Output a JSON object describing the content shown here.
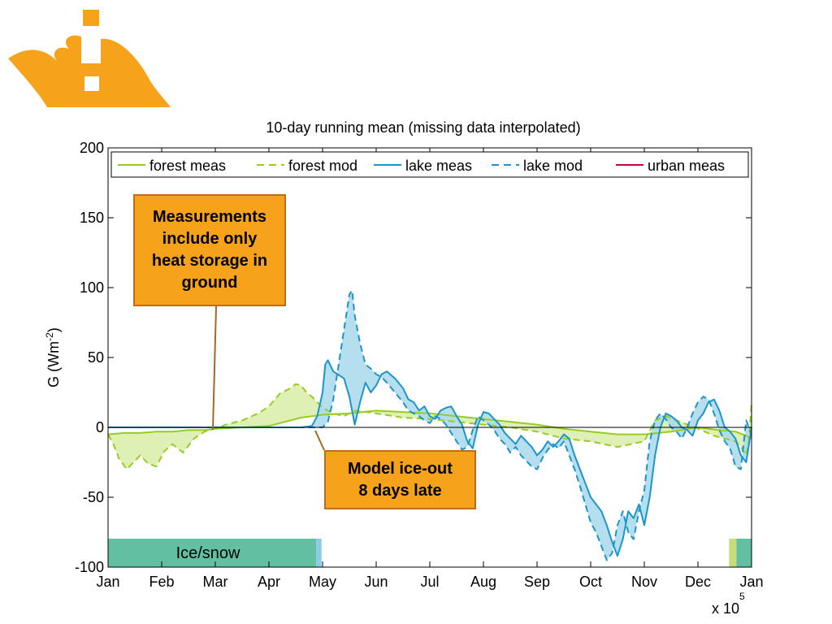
{
  "logo": {
    "name": "university-flame-logo",
    "color": "#F7A21B"
  },
  "callouts": {
    "measurements": "Measurements\ninclude only\nheat storage in\nground",
    "ice_out": "Model ice-out\n8 days late"
  },
  "chart_data": {
    "type": "line",
    "title": "10-day running mean (missing data interpolated)",
    "xlabel": "",
    "ylabel": "G (Wm",
    "ylabel_sup": "-2",
    "ylabel_end": ")",
    "ylim": [
      -100,
      200
    ],
    "yticks": [
      -100,
      -50,
      0,
      50,
      100,
      150,
      200
    ],
    "x_tick_labels": [
      "Jan",
      "Feb",
      "Mar",
      "Apr",
      "May",
      "Jun",
      "Jul",
      "Aug",
      "Sep",
      "Oct",
      "Nov",
      "Dec",
      "Jan"
    ],
    "x_multiplier_label": "x 10",
    "x_multiplier_exp": "5",
    "xlim_months": [
      0,
      12
    ],
    "legend_position": "top",
    "colors": {
      "forest": "#99CC22",
      "forest_fill": "#D9EDA8",
      "lake": "#1C95C9",
      "lake_fill": "#A8D8EC",
      "urban": "#C8003C",
      "ice": "#62BFA2",
      "ice_lake": "#8CCBE8",
      "ice_forest": "#C6DC7A"
    },
    "series": [
      {
        "name": "forest meas",
        "style": "solid",
        "color": "#99CC22",
        "x": [
          0,
          0.3,
          0.6,
          0.9,
          1.2,
          1.5,
          1.8,
          2.0,
          2.5,
          3.0,
          3.3,
          3.6,
          4.0,
          4.5,
          5.0,
          5.5,
          6.0,
          6.5,
          7.0,
          7.5,
          8.0,
          8.5,
          9.0,
          9.5,
          10.0,
          10.5,
          11.0,
          11.4,
          11.7,
          11.9,
          12.0
        ],
        "y": [
          -5,
          -4,
          -4,
          -3,
          -3,
          -2,
          -2,
          -1,
          0,
          1,
          4,
          7,
          9,
          10,
          12,
          11,
          10,
          8,
          6,
          4,
          2,
          -1,
          -3,
          -5,
          -5,
          -3,
          0,
          -2,
          -3,
          -6,
          -8
        ]
      },
      {
        "name": "forest mod",
        "style": "dashed",
        "color": "#99CC22",
        "x": [
          0,
          0.1,
          0.2,
          0.35,
          0.5,
          0.6,
          0.75,
          0.9,
          1.05,
          1.2,
          1.4,
          1.6,
          1.8,
          2.0,
          2.2,
          2.5,
          2.8,
          3.0,
          3.2,
          3.4,
          3.5,
          3.6,
          3.7,
          3.8,
          3.9,
          4.0,
          4.2,
          4.4,
          4.6,
          5.0,
          5.5,
          6.0,
          6.5,
          7.0,
          7.5,
          8.0,
          8.5,
          9.0,
          9.5,
          10.0,
          10.2,
          10.4,
          10.6,
          11.0,
          11.3,
          11.5,
          11.7,
          11.8,
          11.9,
          11.95,
          12.0
        ],
        "y": [
          -5,
          -12,
          -22,
          -30,
          -24,
          -20,
          -26,
          -28,
          -17,
          -12,
          -18,
          -8,
          -3,
          -1,
          2,
          5,
          10,
          15,
          24,
          28,
          31,
          30,
          25,
          22,
          18,
          14,
          10,
          8,
          12,
          10,
          7,
          6,
          4,
          2,
          0,
          -3,
          -8,
          -10,
          -14,
          -10,
          5,
          8,
          5,
          -1,
          -6,
          -8,
          -10,
          -14,
          -20,
          -10,
          17
        ]
      },
      {
        "name": "lake meas",
        "style": "solid",
        "color": "#1C95C9",
        "x": [
          0,
          1,
          2,
          3,
          3.6,
          3.8,
          3.9,
          4.0,
          4.05,
          4.1,
          4.2,
          4.4,
          4.5,
          4.6,
          4.7,
          4.8,
          4.9,
          5.0,
          5.1,
          5.2,
          5.35,
          5.5,
          5.6,
          5.7,
          5.8,
          5.9,
          6.0,
          6.1,
          6.2,
          6.3,
          6.4,
          6.5,
          6.6,
          6.7,
          6.8,
          6.9,
          7.0,
          7.1,
          7.2,
          7.3,
          7.4,
          7.5,
          7.6,
          7.7,
          7.8,
          7.9,
          8.0,
          8.1,
          8.2,
          8.3,
          8.4,
          8.5,
          8.6,
          8.7,
          8.8,
          8.9,
          9.0,
          9.1,
          9.2,
          9.3,
          9.4,
          9.5,
          9.6,
          9.7,
          9.8,
          9.9,
          10.0,
          10.1,
          10.2,
          10.3,
          10.4,
          10.5,
          10.6,
          10.7,
          10.8,
          10.9,
          11.0,
          11.1,
          11.2,
          11.3,
          11.4,
          11.5,
          11.6,
          11.7,
          11.8,
          11.9,
          12.0
        ],
        "y": [
          0,
          0,
          0,
          0,
          0,
          1,
          8,
          25,
          45,
          48,
          40,
          35,
          22,
          2,
          18,
          32,
          25,
          30,
          38,
          40,
          35,
          28,
          20,
          18,
          12,
          15,
          8,
          6,
          12,
          14,
          15,
          8,
          2,
          -10,
          -15,
          2,
          11,
          10,
          6,
          2,
          -4,
          -8,
          -12,
          -6,
          -10,
          -14,
          -20,
          -16,
          -10,
          -14,
          -10,
          -5,
          -8,
          -20,
          -30,
          -40,
          -50,
          -55,
          -60,
          -70,
          -82,
          -92,
          -80,
          -60,
          -65,
          -55,
          -70,
          -50,
          -20,
          0,
          10,
          8,
          5,
          0,
          -2,
          -6,
          5,
          10,
          18,
          20,
          12,
          0,
          -3,
          -8,
          -20,
          -25,
          0
        ]
      },
      {
        "name": "lake mod",
        "style": "dashed",
        "color": "#1C95C9",
        "x": [
          0,
          1,
          2,
          3,
          3.6,
          3.8,
          3.9,
          4.0,
          4.1,
          4.2,
          4.3,
          4.4,
          4.5,
          4.55,
          4.6,
          4.7,
          4.8,
          4.9,
          5.0,
          5.1,
          5.2,
          5.35,
          5.5,
          5.6,
          5.7,
          5.8,
          5.9,
          6.0,
          6.1,
          6.2,
          6.3,
          6.4,
          6.5,
          6.6,
          6.7,
          6.8,
          6.9,
          7.0,
          7.1,
          7.2,
          7.3,
          7.4,
          7.5,
          7.6,
          7.7,
          7.8,
          7.9,
          8.0,
          8.1,
          8.2,
          8.3,
          8.4,
          8.5,
          8.6,
          8.7,
          8.8,
          8.9,
          9.0,
          9.1,
          9.2,
          9.3,
          9.4,
          9.5,
          9.6,
          9.7,
          9.8,
          9.9,
          10.0,
          10.1,
          10.2,
          10.3,
          10.4,
          10.5,
          10.6,
          10.7,
          10.8,
          10.9,
          11.0,
          11.1,
          11.2,
          11.3,
          11.4,
          11.5,
          11.6,
          11.7,
          11.8,
          11.9,
          12.0
        ],
        "y": [
          0,
          0,
          0,
          0,
          0,
          0,
          0,
          0,
          4,
          20,
          45,
          70,
          95,
          98,
          80,
          60,
          45,
          42,
          38,
          36,
          32,
          25,
          18,
          12,
          10,
          8,
          5,
          3,
          8,
          6,
          2,
          -4,
          -10,
          -16,
          -14,
          -2,
          8,
          5,
          2,
          -2,
          -8,
          -12,
          -18,
          -14,
          -20,
          -24,
          -28,
          -30,
          -22,
          -16,
          -12,
          -15,
          -10,
          -20,
          -30,
          -42,
          -55,
          -68,
          -75,
          -85,
          -95,
          -90,
          -70,
          -60,
          -75,
          -80,
          -60,
          -45,
          -10,
          5,
          10,
          6,
          0,
          -3,
          -8,
          0,
          10,
          18,
          22,
          20,
          10,
          -2,
          -10,
          -15,
          -28,
          -30,
          5,
          -5
        ]
      },
      {
        "name": "urban meas",
        "style": "solid",
        "color": "#C8003C",
        "x": [],
        "y": []
      }
    ],
    "ice_bars": [
      {
        "label": "Ice/snow",
        "from": 0,
        "to": 3.88,
        "color": "#62BFA2"
      },
      {
        "label": "",
        "from": 3.88,
        "to": 3.98,
        "color": "#8CCBE8"
      },
      {
        "label": "",
        "from": 11.58,
        "to": 11.72,
        "color": "#C6DC7A"
      },
      {
        "label": "",
        "from": 11.72,
        "to": 12.0,
        "color": "#62BFA2"
      }
    ]
  }
}
